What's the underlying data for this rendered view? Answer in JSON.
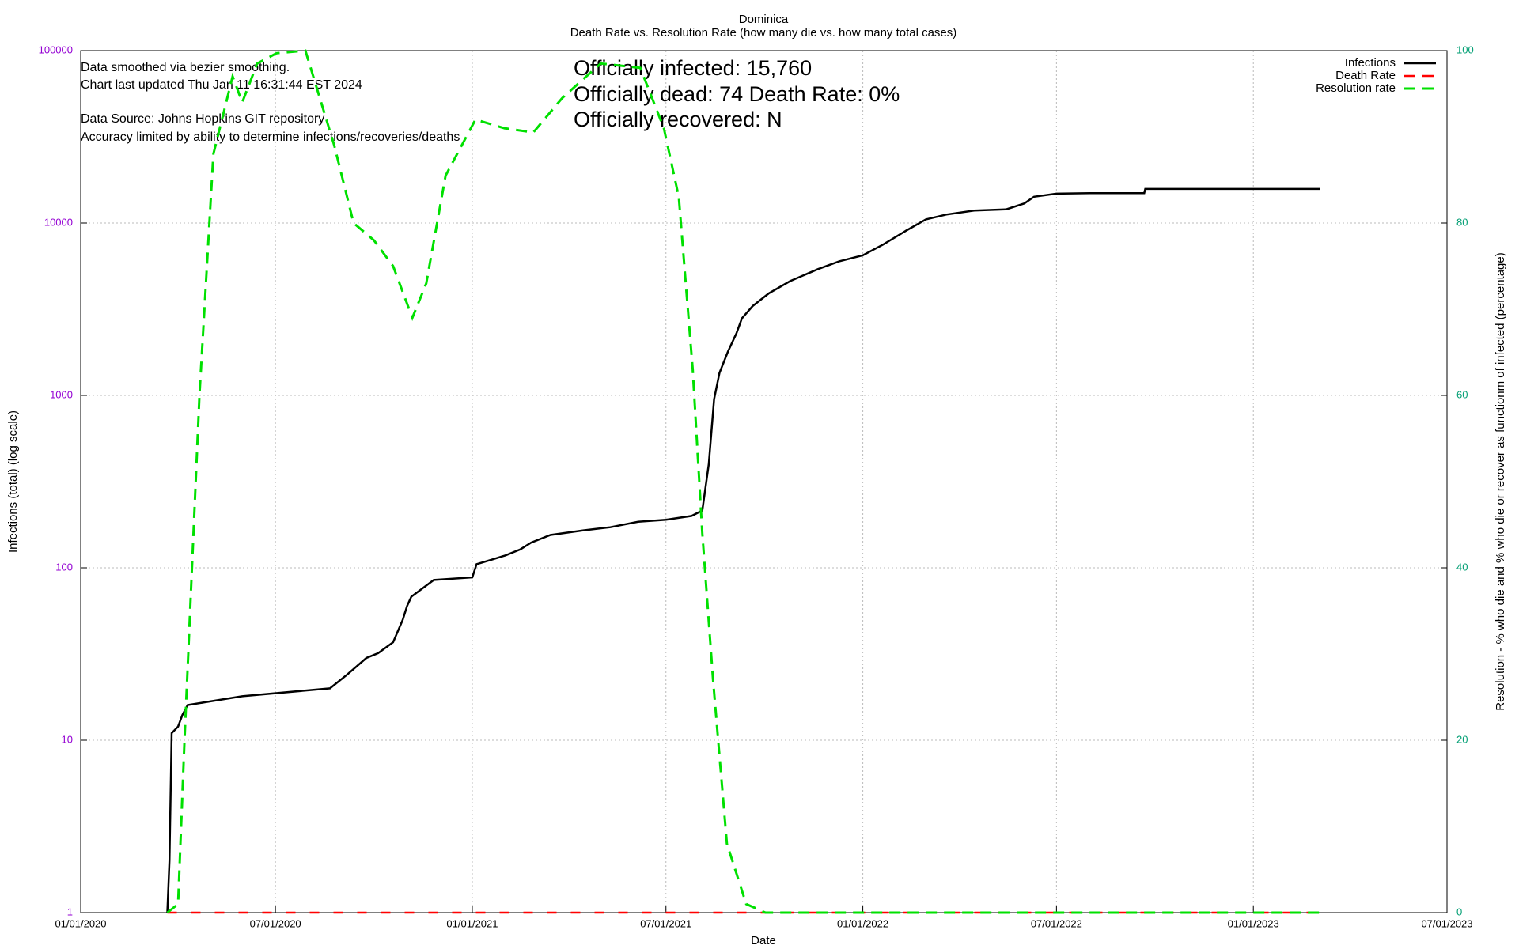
{
  "chart_data": {
    "type": "line",
    "title": "Dominica",
    "subtitle": "Death Rate vs. Resolution Rate (how many die vs. how many total cases)",
    "x_label": "Date",
    "y_label": "Infections (total) (log scale)",
    "y2_label": "Resolution - % who die and % who die or recover as functionm of infected (percentage)",
    "annotations": [
      "Data smoothed via bezier smoothing.",
      "Chart last updated Thu Jan 11 16:31:44 EST 2024",
      "Data Source: Johns Hopkins GIT repository",
      "Accuracy limited by ability to determine infections/recoveries/deaths"
    ],
    "summary": [
      "Officially infected:  15,760",
      "Officially dead:  74   Death Rate: 0%",
      "Officially recovered:  N"
    ],
    "log_y": true,
    "grid": true,
    "legend": "top-right",
    "xlim": [
      "01/01/2020",
      "07/01/2023"
    ],
    "xticks": [
      "01/01/2020",
      "07/01/2020",
      "01/01/2021",
      "07/01/2021",
      "01/01/2022",
      "07/01/2022",
      "01/01/2023",
      "07/01/2023"
    ],
    "ylim": [
      1,
      100000
    ],
    "yticks": [
      1,
      10,
      100,
      1000,
      10000,
      100000
    ],
    "y_tick_color": "#9400d3",
    "y2lim": [
      0,
      100
    ],
    "y2ticks": [
      0,
      20,
      40,
      60,
      80,
      100
    ],
    "y2_tick_color": "#009e73",
    "series": [
      {
        "name": "Infections",
        "color": "#000000",
        "axis": "y",
        "x": [
          "03/22/2020",
          "03/24/2020",
          "03/26/2020",
          "04/01/2020",
          "04/05/2020",
          "04/10/2020",
          "05/31/2020",
          "08/21/2020",
          "09/06/2020",
          "09/24/2020",
          "10/05/2020",
          "10/19/2020",
          "10/28/2020",
          "11/01/2020",
          "11/05/2020",
          "11/26/2020",
          "01/01/2021",
          "01/05/2021",
          "01/20/2021",
          "02/01/2021",
          "02/15/2021",
          "02/25/2021",
          "03/15/2021",
          "04/15/2021",
          "05/10/2021",
          "06/05/2021",
          "07/01/2021",
          "07/25/2021",
          "08/04/2021",
          "08/10/2021",
          "08/15/2021",
          "08/20/2021",
          "08/28/2021",
          "09/05/2021",
          "09/10/2021",
          "09/20/2021",
          "10/05/2021",
          "10/25/2021",
          "11/20/2021",
          "12/10/2021",
          "01/01/2022",
          "01/20/2022",
          "02/10/2022",
          "03/01/2022",
          "03/20/2022",
          "04/15/2022",
          "05/15/2022",
          "06/01/2022",
          "06/10/2022",
          "07/01/2022",
          "08/01/2022",
          "09/21/2022",
          "09/22/2022",
          "03/04/2023"
        ],
        "values": [
          1,
          2,
          11,
          12,
          14,
          16,
          18,
          20,
          24,
          30,
          32,
          37,
          50,
          60,
          68,
          85,
          88,
          105,
          112,
          118,
          128,
          140,
          155,
          165,
          172,
          185,
          190,
          200,
          215,
          400,
          950,
          1350,
          1800,
          2300,
          2800,
          3300,
          3900,
          4600,
          5400,
          6000,
          6500,
          7500,
          9000,
          10500,
          11200,
          11800,
          12000,
          13000,
          14200,
          14800,
          14900,
          14900,
          15760,
          15760
        ]
      },
      {
        "name": "Death Rate",
        "color": "#ff0000",
        "axis": "y2",
        "x": [
          "03/22/2020",
          "03/04/2023"
        ],
        "values": [
          0,
          0
        ]
      },
      {
        "name": "Resolution rate",
        "color": "#00e000",
        "axis": "y2",
        "x": [
          "03/22/2020",
          "04/01/2020",
          "04/07/2020",
          "04/21/2020",
          "05/04/2020",
          "05/22/2020",
          "05/31/2020",
          "06/14/2020",
          "07/02/2020",
          "07/29/2020",
          "08/25/2020",
          "09/12/2020",
          "10/01/2020",
          "10/19/2020",
          "11/06/2020",
          "11/19/2020",
          "12/07/2020",
          "01/04/2021",
          "01/31/2021",
          "02/27/2021",
          "03/26/2021",
          "05/01/2021",
          "06/07/2021",
          "06/29/2021",
          "07/13/2021",
          "07/26/2021",
          "08/04/2021",
          "08/14/2021",
          "08/27/2021",
          "09/14/2021",
          "10/02/2021",
          "03/04/2023"
        ],
        "values": [
          0,
          1,
          20,
          60,
          88,
          97,
          94,
          98.5,
          99.7,
          100,
          89,
          80,
          78,
          75,
          69,
          73,
          85.5,
          92,
          91,
          90.5,
          94.5,
          98.5,
          98,
          91,
          83,
          63,
          44,
          27,
          8,
          1,
          0,
          0
        ]
      }
    ]
  }
}
